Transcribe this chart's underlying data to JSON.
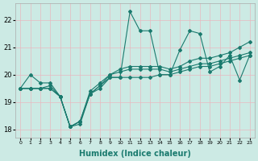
{
  "xlabel": "Humidex (Indice chaleur)",
  "bg_color": "#cceae4",
  "grid_color": "#e8f5f2",
  "line_color": "#1a7a6e",
  "xlim": [
    -0.5,
    23.5
  ],
  "ylim": [
    17.7,
    22.6
  ],
  "yticks": [
    18,
    19,
    20,
    21,
    22
  ],
  "xticks": [
    0,
    1,
    2,
    3,
    4,
    5,
    6,
    7,
    8,
    9,
    10,
    11,
    12,
    13,
    14,
    15,
    16,
    17,
    18,
    19,
    20,
    21,
    22,
    23
  ],
  "marker": "D",
  "markersize": 2.0,
  "linewidth": 0.8,
  "series": {
    "line1": [
      19.5,
      20.0,
      19.7,
      19.7,
      19.2,
      18.1,
      18.2,
      19.3,
      19.5,
      19.9,
      19.9,
      22.3,
      21.6,
      21.6,
      20.0,
      20.0,
      20.9,
      21.6,
      21.5,
      20.1,
      20.3,
      20.7,
      19.8,
      20.7
    ],
    "line2": [
      19.5,
      19.5,
      19.5,
      19.5,
      19.2,
      18.1,
      18.3,
      19.3,
      19.6,
      20.0,
      20.1,
      20.2,
      20.2,
      20.2,
      20.2,
      20.1,
      20.2,
      20.3,
      20.4,
      20.4,
      20.5,
      20.6,
      20.7,
      20.8
    ],
    "line3": [
      19.5,
      19.5,
      19.5,
      19.6,
      19.2,
      18.1,
      18.3,
      19.4,
      19.7,
      20.0,
      20.2,
      20.3,
      20.3,
      20.3,
      20.3,
      20.2,
      20.3,
      20.5,
      20.6,
      20.6,
      20.7,
      20.8,
      21.0,
      21.2
    ],
    "line4": [
      19.5,
      19.5,
      19.5,
      19.5,
      19.2,
      18.1,
      18.3,
      19.3,
      19.6,
      19.9,
      19.9,
      19.9,
      19.9,
      19.9,
      20.0,
      20.0,
      20.1,
      20.2,
      20.3,
      20.3,
      20.4,
      20.5,
      20.6,
      20.7
    ]
  }
}
